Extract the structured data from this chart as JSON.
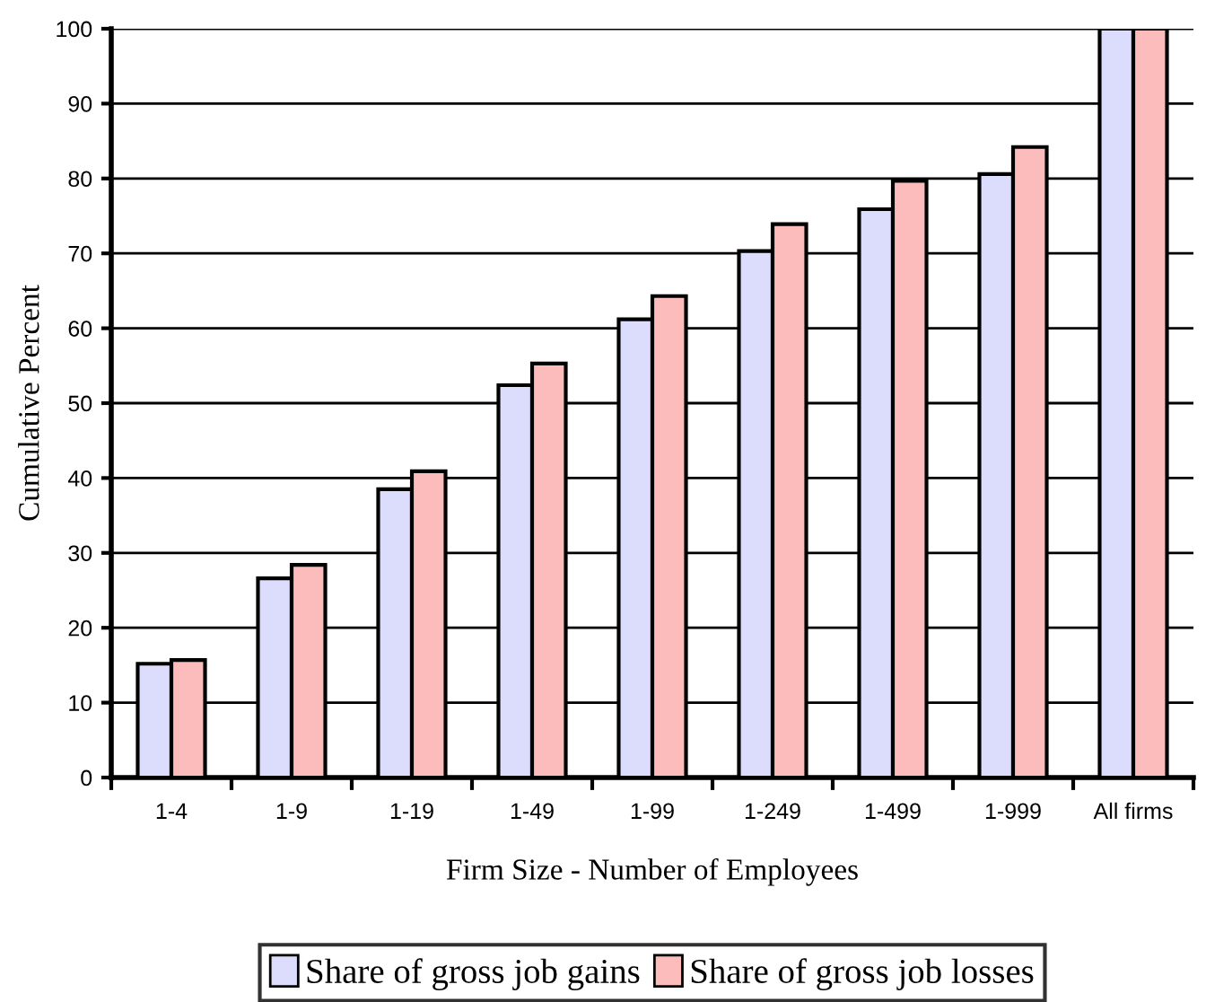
{
  "chart_data": {
    "type": "bar",
    "xlabel": "Firm Size - Number of Employees",
    "ylabel": "Cumulative Percent",
    "categories": [
      "1-4",
      "1-9",
      "1-19",
      "1-49",
      "1-99",
      "1-249",
      "1-499",
      "1-999",
      "All firms"
    ],
    "series": [
      {
        "name": "Share of gross job gains",
        "color": "#dcdcfc",
        "values": [
          15.2,
          26.6,
          38.5,
          52.4,
          61.2,
          70.3,
          75.9,
          80.6,
          100
        ]
      },
      {
        "name": "Share of gross job losses",
        "color": "#fcbcbc",
        "values": [
          15.7,
          28.4,
          40.9,
          55.3,
          64.3,
          73.9,
          79.7,
          84.2,
          100
        ]
      }
    ],
    "ylim": [
      0,
      100
    ],
    "yticks": [
      0,
      10,
      20,
      30,
      40,
      50,
      60,
      70,
      80,
      90,
      100
    ],
    "grid": "y",
    "legend": "bottom"
  }
}
